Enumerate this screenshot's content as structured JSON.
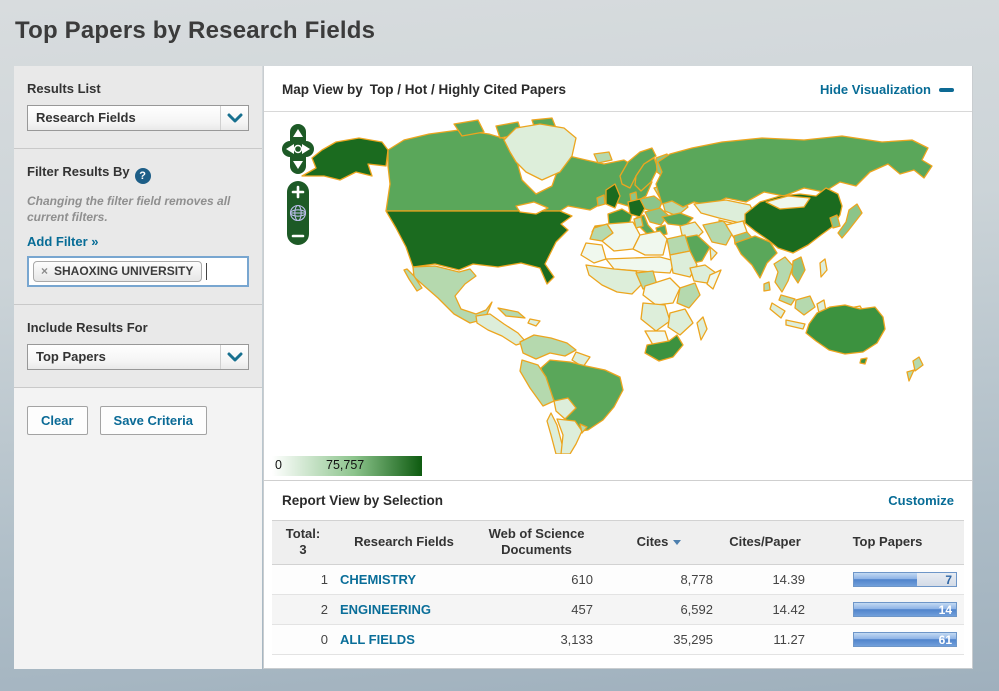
{
  "page": {
    "title": "Top Papers by Research Fields"
  },
  "sidebar": {
    "results_list": {
      "label": "Results List",
      "selected": "Research Fields"
    },
    "filter": {
      "label": "Filter Results By",
      "note": "Changing the filter field removes all current filters.",
      "add_filter_label": "Add Filter »",
      "tag": {
        "remove_glyph": "×",
        "text": "SHAOXING UNIVERSITY"
      }
    },
    "include_results": {
      "label": "Include Results For",
      "selected": "Top Papers"
    },
    "actions": {
      "clear_label": "Clear",
      "save_label": "Save Criteria"
    }
  },
  "map_section": {
    "title_prefix": "Map View by",
    "title_value": "Top / Hot / Highly Cited Papers",
    "hide_link": "Hide Visualization",
    "legend": {
      "min": "0",
      "max": "75,757"
    },
    "controls": [
      "pan-up",
      "pan-down",
      "pan-left",
      "pan-right",
      "zoom-in",
      "globe-reset",
      "zoom-out"
    ]
  },
  "report_section": {
    "title": "Report View by Selection",
    "customize_link": "Customize",
    "table": {
      "total_label": "Total:",
      "total_count": "3",
      "columns": [
        "Research Fields",
        "Web of Science Documents",
        "Cites",
        "Cites/Paper",
        "Top Papers"
      ],
      "sorted_column": "Cites",
      "sort_direction": "desc",
      "rows": [
        {
          "rank": "1",
          "field": "CHEMISTRY",
          "wos_documents": "610",
          "cites": "8,778",
          "cites_per_paper": "14.39",
          "top_papers": "7",
          "bar_pct": 62
        },
        {
          "rank": "2",
          "field": "ENGINEERING",
          "wos_documents": "457",
          "cites": "6,592",
          "cites_per_paper": "14.42",
          "top_papers": "14",
          "bar_pct": 100
        },
        {
          "rank": "0",
          "field": "ALL FIELDS",
          "wos_documents": "3,133",
          "cites": "35,295",
          "cites_per_paper": "11.27",
          "top_papers": "61",
          "bar_pct": 100
        }
      ]
    }
  },
  "colors": {
    "accent_link": "#076c96",
    "sorted_column_link": "#4d7fae",
    "choropleth_min": "#ffffff",
    "choropleth_max": "#0e5b10",
    "country_border": "#eca51f",
    "bar_fill": "#5b8fd4",
    "control_green": "#1d5a26"
  }
}
